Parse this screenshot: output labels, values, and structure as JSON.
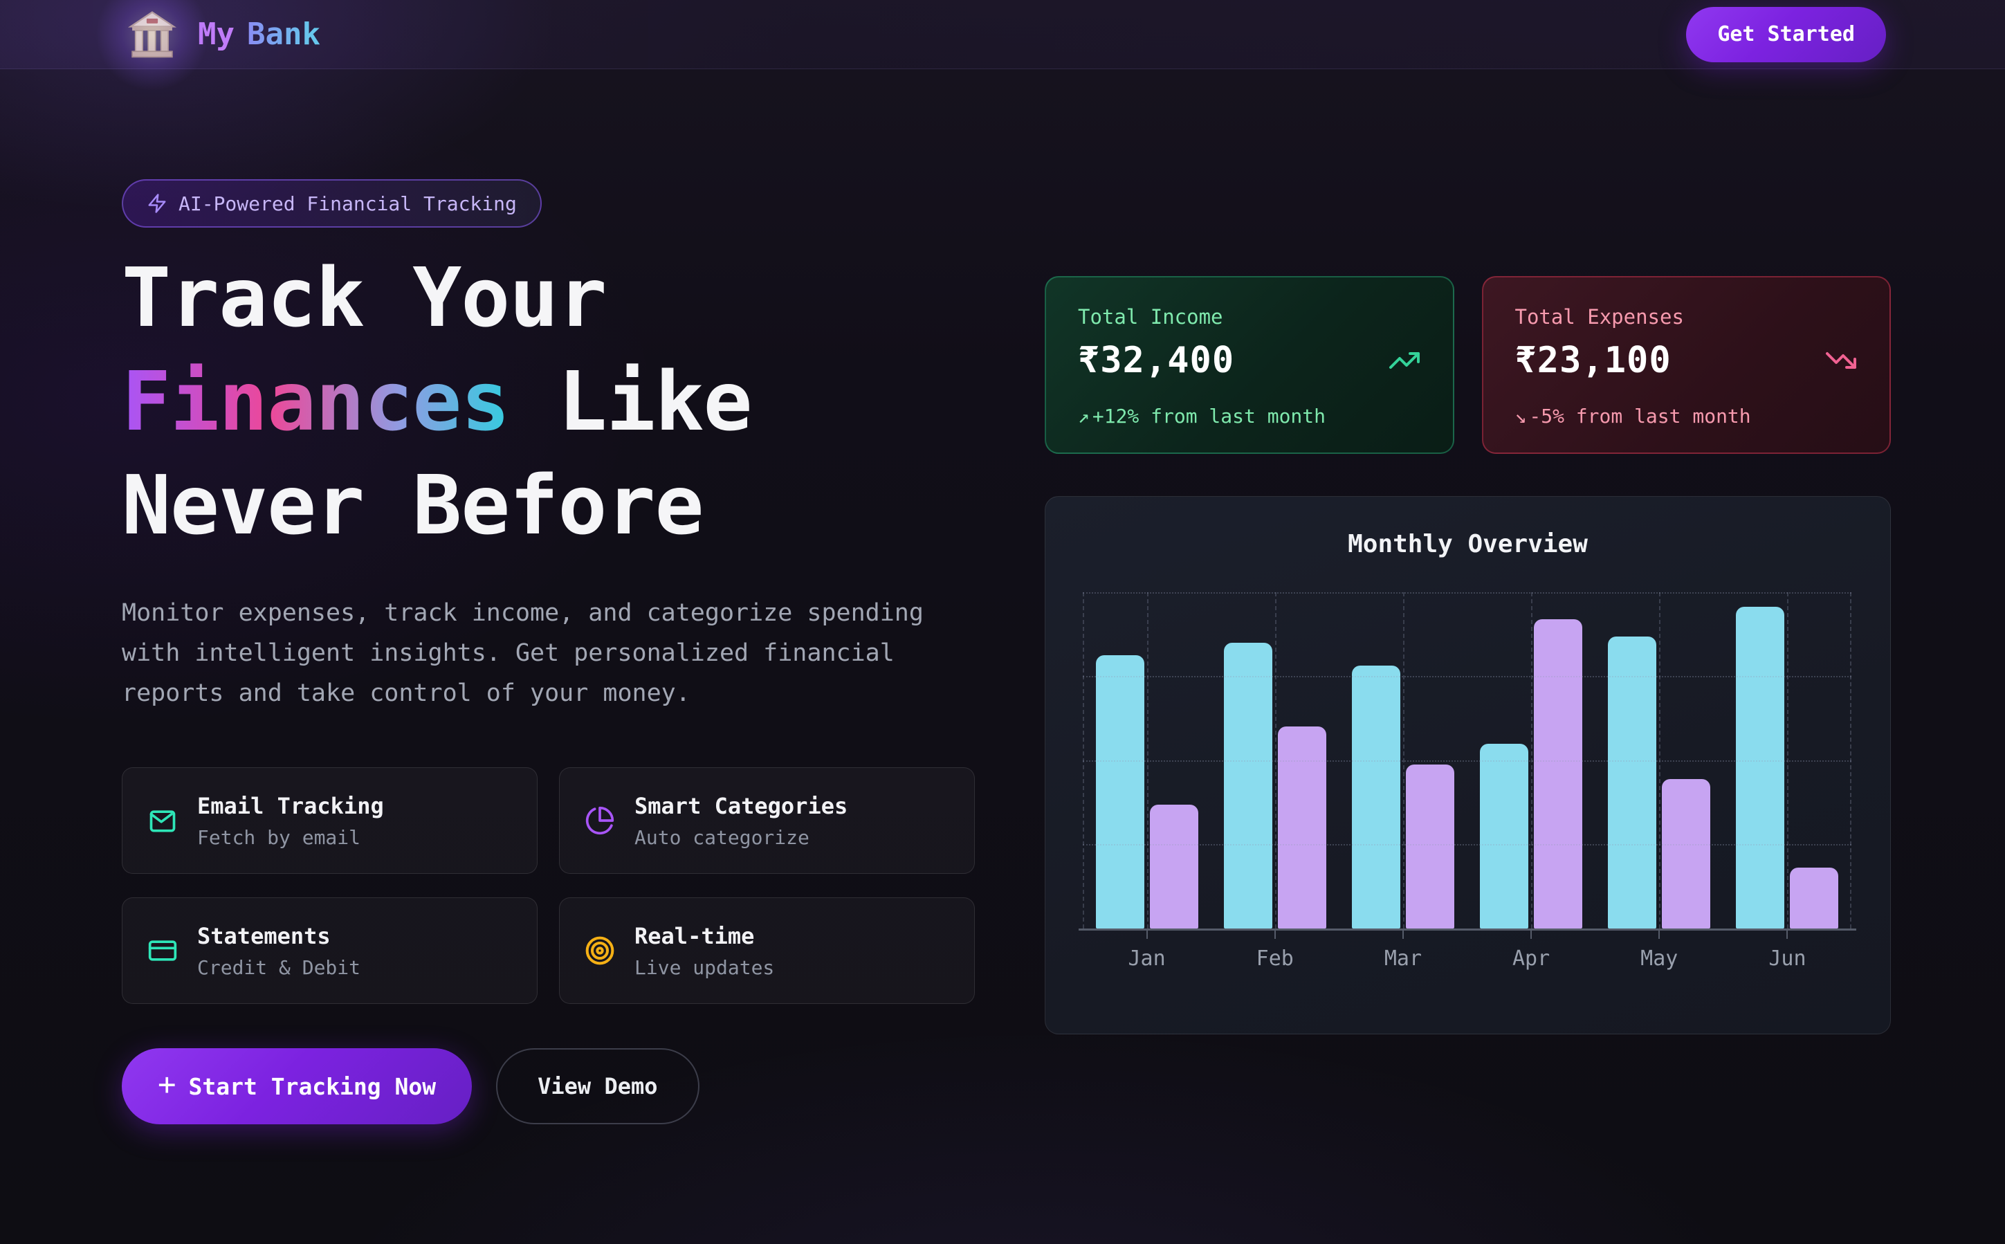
{
  "nav": {
    "brand_first": "My",
    "brand_second": "Bank",
    "cta_label": "Get Started"
  },
  "hero": {
    "badge_label": "AI-Powered Financial Tracking",
    "title_line1": "Track Your",
    "title_gradient_word": "Finances",
    "title_line2_rest": " Like",
    "title_line3": "Never Before",
    "description": "Monitor expenses, track income, and categorize spending with intelligent insights. Get personalized financial reports and take control of your money.",
    "features": [
      {
        "title": "Email Tracking",
        "subtitle": "Fetch by email",
        "icon": "mail-icon",
        "color": "#2ee6b8"
      },
      {
        "title": "Smart Categories",
        "subtitle": "Auto categorize",
        "icon": "pie-chart-icon",
        "color": "#a855f7"
      },
      {
        "title": "Statements",
        "subtitle": "Credit & Debit",
        "icon": "credit-card-icon",
        "color": "#2ee6b8"
      },
      {
        "title": "Real-time",
        "subtitle": "Live updates",
        "icon": "target-icon",
        "color": "#f5b015"
      }
    ],
    "primary_cta": "Start Tracking Now",
    "secondary_cta": "View Demo"
  },
  "stats": {
    "income": {
      "label": "Total Income",
      "amount": "₹32,400",
      "trend_arrow": "↗",
      "trend_text": "+12% from last month",
      "icon": "trending-up-icon",
      "accent": "#34d399"
    },
    "expenses": {
      "label": "Total Expenses",
      "amount": "₹23,100",
      "trend_arrow": "↘",
      "trend_text": "-5% from last month",
      "icon": "trending-down-icon",
      "accent": "#f472a0"
    }
  },
  "chart_data": {
    "type": "bar",
    "title": "Monthly Overview",
    "categories": [
      "Jan",
      "Feb",
      "Mar",
      "Apr",
      "May",
      "Jun"
    ],
    "series": [
      {
        "name": "income",
        "color": "#8adcee",
        "values": [
          6500,
          6800,
          6250,
          4400,
          6950,
          7650
        ]
      },
      {
        "name": "expenses",
        "color": "#c7a4f2",
        "values": [
          2950,
          4800,
          3900,
          7350,
          3550,
          1450
        ]
      }
    ],
    "ylim": [
      0,
      8000
    ],
    "grid": true,
    "legend": false,
    "xlabel": "",
    "ylabel": ""
  },
  "theme": {
    "accent_purple": "#7c22e0",
    "income_green": "#34d399",
    "expense_pink": "#fb7195"
  }
}
